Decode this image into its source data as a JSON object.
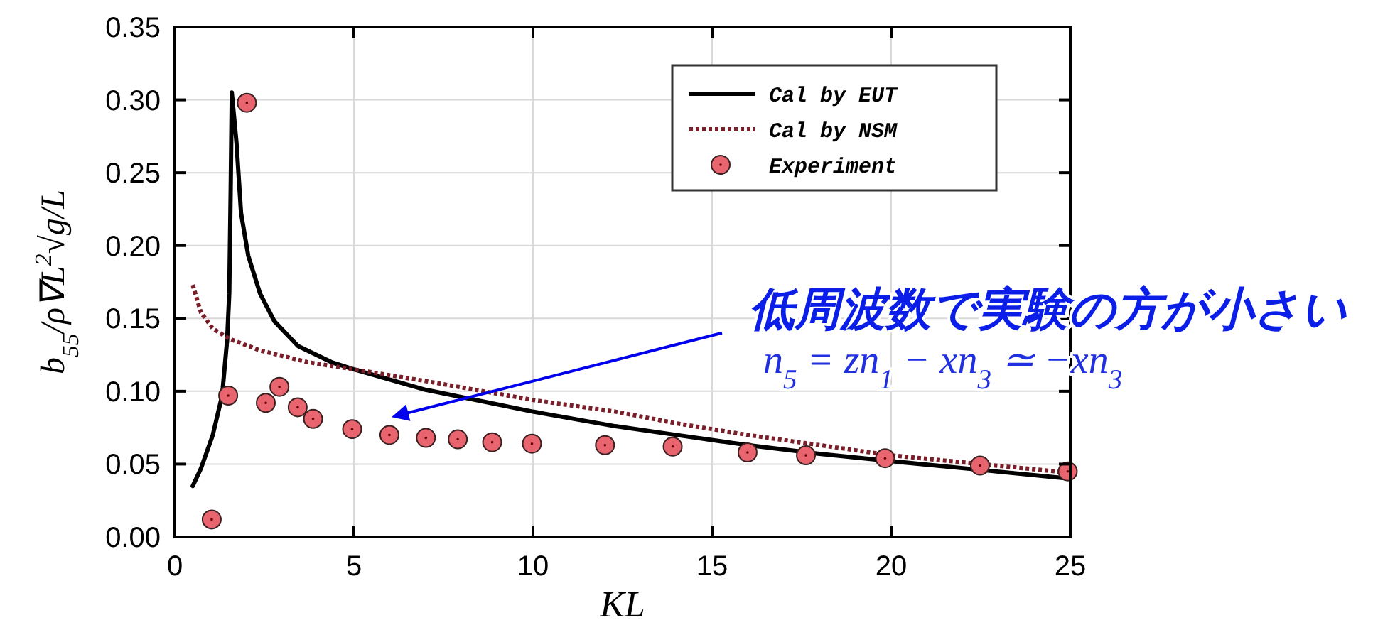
{
  "chart_data": {
    "type": "line",
    "xlabel": "KL",
    "ylabel": "b$_{55}$/ρ∇L$^{2}$√g/L",
    "xlim": [
      0,
      25
    ],
    "xticks": [
      0,
      5,
      10,
      15,
      20,
      25
    ],
    "ylim": [
      0,
      0.35
    ],
    "yticks": [
      {
        "value": 0,
        "label": "0.00"
      },
      {
        "value": 0.05,
        "label": "0.05"
      },
      {
        "value": 0.1,
        "label": "0.10"
      },
      {
        "value": 0.15,
        "label": "0.15"
      },
      {
        "value": 0.2,
        "label": "0.20"
      },
      {
        "value": 0.25,
        "label": "0.25"
      },
      {
        "value": 0.3,
        "label": "0.30"
      },
      {
        "value": 0.35,
        "label": "0.35"
      }
    ],
    "grid": true,
    "legend": "top right",
    "series": [
      {
        "name": "Cal by EUT",
        "color": "#000000",
        "line_style": "solid",
        "x": [
          0.5,
          0.73,
          1.06,
          1.32,
          1.46,
          1.52,
          1.56,
          1.59,
          1.72,
          1.85,
          2.05,
          2.38,
          2.78,
          3.44,
          4.37,
          5,
          7,
          10,
          12.3,
          14,
          16,
          18,
          20,
          22.5,
          25
        ],
        "values": [
          0.035,
          0.047,
          0.07,
          0.097,
          0.135,
          0.167,
          0.239,
          0.305,
          0.271,
          0.222,
          0.193,
          0.167,
          0.148,
          0.131,
          0.12,
          0.115,
          0.101,
          0.086,
          0.076,
          0.07,
          0.063,
          0.057,
          0.052,
          0.046,
          0.04
        ]
      },
      {
        "name": "Cal by NSM",
        "color": "#7a1f2a",
        "line_style": "dotted",
        "x": [
          0.5,
          0.73,
          1.06,
          1.52,
          2.38,
          3.7,
          5,
          7,
          10,
          12.3,
          14,
          16,
          18,
          20,
          22.5,
          25
        ],
        "values": [
          0.173,
          0.154,
          0.143,
          0.136,
          0.128,
          0.12,
          0.115,
          0.107,
          0.094,
          0.086,
          0.078,
          0.07,
          0.063,
          0.056,
          0.05,
          0.044
        ]
      },
      {
        "name": "Experiment",
        "type": "scatter",
        "color": "#e8646e",
        "marker": "circle",
        "x": [
          1.03,
          1.49,
          2.01,
          2.54,
          2.92,
          3.43,
          3.86,
          4.95,
          5.99,
          7.01,
          7.9,
          8.86,
          9.97,
          12.01,
          13.9,
          15.99,
          17.62,
          19.83,
          22.48,
          24.93
        ],
        "values": [
          0.012,
          0.097,
          0.298,
          0.092,
          0.103,
          0.089,
          0.081,
          0.074,
          0.07,
          0.068,
          0.067,
          0.065,
          0.064,
          0.063,
          0.062,
          0.058,
          0.056,
          0.054,
          0.049,
          0.045
        ]
      }
    ],
    "annotations": [
      "低周波数で実験の方が小さい",
      "n$_{5}$ = zn$_{1}$ − xn$_{3}$ ≃ −xn$_{3}$"
    ]
  }
}
